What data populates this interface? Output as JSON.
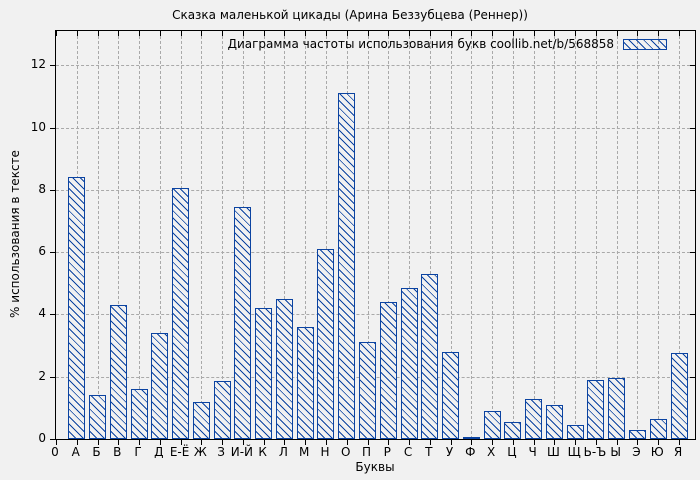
{
  "page": {
    "title": "Сказка маленькой цикады (Арина Беззубцева (Реннер))"
  },
  "chart_data": {
    "type": "bar",
    "title": "Сказка маленькой цикады (Арина Беззубцева (Реннер))",
    "legend_label": "Диаграмма частоты использования букв coollib.net/b/568858",
    "legend_position": "top-right-inside",
    "xlabel": "Буквы",
    "ylabel": "% использования в тексте",
    "categories": [
      "0",
      "А",
      "Б",
      "В",
      "Г",
      "Д",
      "Е-Ё",
      "Ж",
      "З",
      "И-Й",
      "К",
      "Л",
      "М",
      "Н",
      "О",
      "П",
      "Р",
      "С",
      "Т",
      "У",
      "Ф",
      "Х",
      "Ц",
      "Ч",
      "Ш",
      "Щ",
      "Ь-Ъ",
      "Ы",
      "Э",
      "Ю",
      "Я"
    ],
    "values": [
      null,
      8.4,
      1.4,
      4.3,
      1.6,
      3.4,
      8.05,
      1.2,
      1.85,
      7.45,
      4.2,
      4.5,
      3.6,
      6.1,
      11.1,
      3.1,
      4.4,
      4.85,
      5.3,
      2.8,
      0.05,
      0.9,
      0.55,
      1.3,
      1.1,
      0.45,
      1.9,
      1.95,
      0.3,
      0.65,
      2.75
    ],
    "yticks": [
      0,
      2,
      4,
      6,
      8,
      10,
      12
    ],
    "ylim": [
      0,
      13.1
    ],
    "grid": true,
    "bar_fill": "hatched-diagonal",
    "colors": {
      "bar": "#0b43a1",
      "grid": "#a9a9a9",
      "background": "#f1f1f1",
      "axis": "#000000",
      "text": "#000000"
    }
  }
}
